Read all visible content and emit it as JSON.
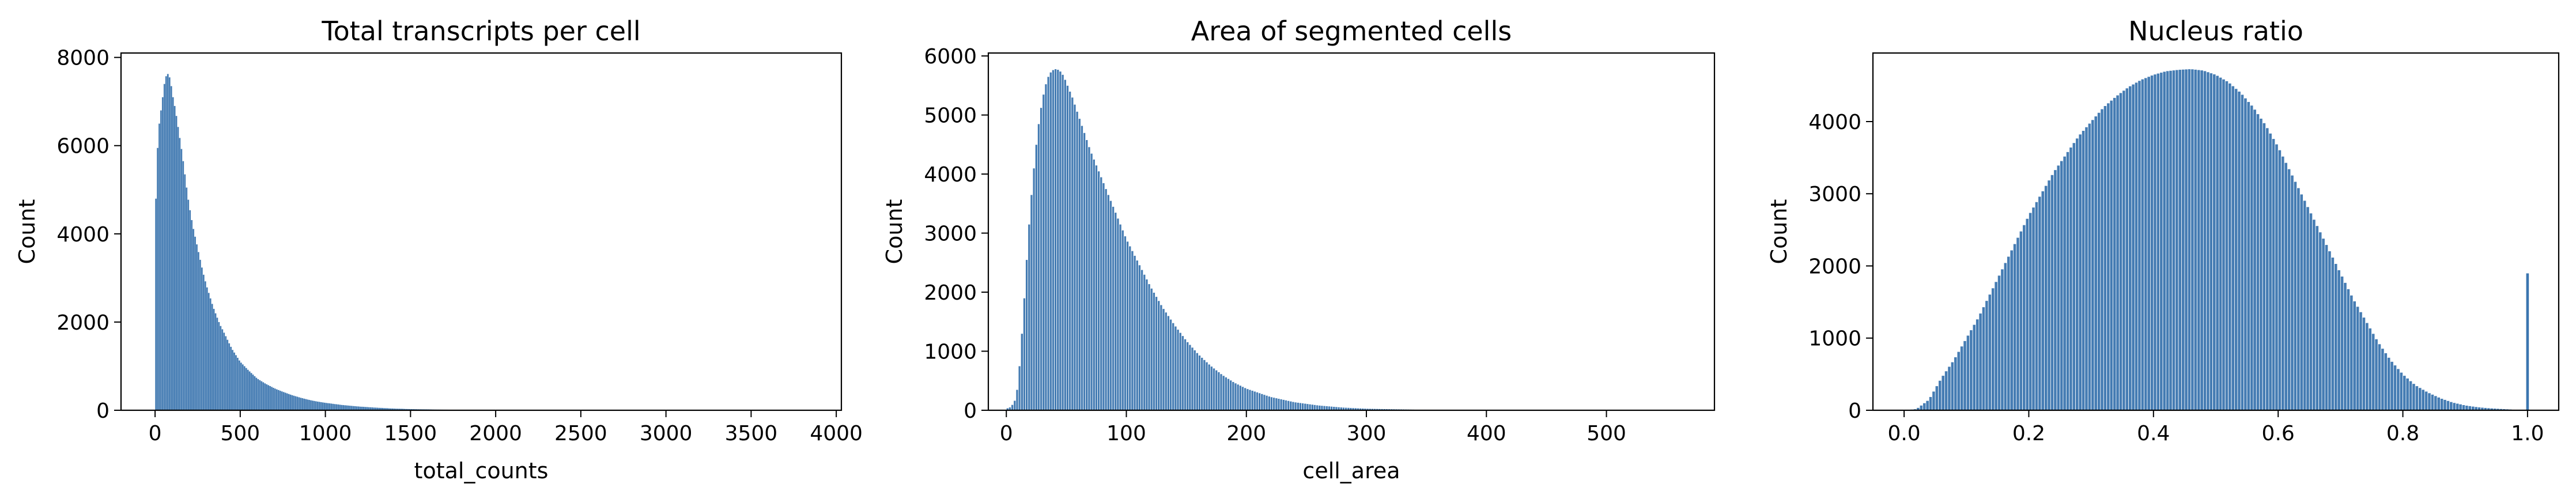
{
  "chart_data": [
    {
      "type": "histogram",
      "title": "Total transcripts per cell",
      "xlabel": "total_counts",
      "ylabel": "Count",
      "xlim": [
        -200,
        4030
      ],
      "ylim": [
        0,
        8100
      ],
      "xticks": [
        0,
        500,
        1000,
        1500,
        2000,
        2500,
        3000,
        3500,
        4000
      ],
      "yticks": [
        0,
        2000,
        4000,
        6000,
        8000
      ],
      "bin_width": 10,
      "color": "#3b75af",
      "profile": [
        [
          0,
          4000
        ],
        [
          10,
          5600
        ],
        [
          20,
          6300
        ],
        [
          30,
          6700
        ],
        [
          40,
          6900
        ],
        [
          50,
          7300
        ],
        [
          60,
          7500
        ],
        [
          70,
          7650
        ],
        [
          80,
          7600
        ],
        [
          90,
          7500
        ],
        [
          100,
          7200
        ],
        [
          110,
          7000
        ],
        [
          120,
          6800
        ],
        [
          130,
          6550
        ],
        [
          140,
          6300
        ],
        [
          150,
          6050
        ],
        [
          160,
          5800
        ],
        [
          170,
          5500
        ],
        [
          180,
          5200
        ],
        [
          190,
          4900
        ],
        [
          200,
          4650
        ],
        [
          220,
          4200
        ],
        [
          240,
          3850
        ],
        [
          260,
          3500
        ],
        [
          280,
          3150
        ],
        [
          300,
          2850
        ],
        [
          320,
          2600
        ],
        [
          340,
          2350
        ],
        [
          360,
          2150
        ],
        [
          380,
          1950
        ],
        [
          400,
          1800
        ],
        [
          450,
          1400
        ],
        [
          500,
          1100
        ],
        [
          550,
          900
        ],
        [
          600,
          720
        ],
        [
          650,
          600
        ],
        [
          700,
          500
        ],
        [
          750,
          420
        ],
        [
          800,
          350
        ],
        [
          850,
          290
        ],
        [
          900,
          240
        ],
        [
          950,
          200
        ],
        [
          1000,
          170
        ],
        [
          1100,
          120
        ],
        [
          1200,
          85
        ],
        [
          1300,
          60
        ],
        [
          1400,
          40
        ],
        [
          1500,
          28
        ],
        [
          1700,
          14
        ],
        [
          2000,
          6
        ],
        [
          2500,
          2
        ],
        [
          3000,
          1
        ],
        [
          3900,
          0
        ]
      ]
    },
    {
      "type": "histogram",
      "title": "Area of segmented cells",
      "xlabel": "cell_area",
      "ylabel": "Count",
      "xlim": [
        -15,
        590
      ],
      "ylim": [
        0,
        6050
      ],
      "xticks": [
        0,
        100,
        200,
        300,
        400,
        500
      ],
      "yticks": [
        0,
        1000,
        2000,
        3000,
        4000,
        5000,
        6000
      ],
      "bin_width": 2,
      "color": "#3b75af",
      "profile": [
        [
          0,
          30
        ],
        [
          4,
          60
        ],
        [
          8,
          200
        ],
        [
          10,
          500
        ],
        [
          12,
          1000
        ],
        [
          14,
          1600
        ],
        [
          16,
          2200
        ],
        [
          18,
          2900
        ],
        [
          20,
          3400
        ],
        [
          22,
          3900
        ],
        [
          24,
          4300
        ],
        [
          26,
          4700
        ],
        [
          28,
          5000
        ],
        [
          30,
          5250
        ],
        [
          32,
          5450
        ],
        [
          34,
          5600
        ],
        [
          36,
          5700
        ],
        [
          38,
          5750
        ],
        [
          40,
          5780
        ],
        [
          42,
          5780
        ],
        [
          44,
          5760
        ],
        [
          46,
          5720
        ],
        [
          48,
          5650
        ],
        [
          50,
          5550
        ],
        [
          55,
          5300
        ],
        [
          60,
          5000
        ],
        [
          65,
          4700
        ],
        [
          70,
          4400
        ],
        [
          75,
          4150
        ],
        [
          80,
          3900
        ],
        [
          85,
          3650
        ],
        [
          90,
          3400
        ],
        [
          95,
          3150
        ],
        [
          100,
          2900
        ],
        [
          110,
          2500
        ],
        [
          120,
          2100
        ],
        [
          130,
          1750
        ],
        [
          140,
          1450
        ],
        [
          150,
          1180
        ],
        [
          160,
          950
        ],
        [
          170,
          760
        ],
        [
          180,
          600
        ],
        [
          190,
          470
        ],
        [
          200,
          370
        ],
        [
          220,
          230
        ],
        [
          240,
          140
        ],
        [
          260,
          85
        ],
        [
          280,
          50
        ],
        [
          300,
          30
        ],
        [
          350,
          10
        ],
        [
          400,
          4
        ],
        [
          450,
          2
        ],
        [
          500,
          1
        ],
        [
          560,
          0
        ]
      ]
    },
    {
      "type": "histogram",
      "title": "Nucleus ratio",
      "xlabel": "",
      "ylabel": "Count",
      "xlim": [
        -0.05,
        1.05
      ],
      "ylim": [
        0,
        4950
      ],
      "xticks": [
        0.0,
        0.2,
        0.4,
        0.6,
        0.8,
        1.0
      ],
      "xtick_labels": [
        "0.0",
        "0.2",
        "0.4",
        "0.6",
        "0.8",
        "1.0"
      ],
      "yticks": [
        0,
        1000,
        2000,
        3000,
        4000
      ],
      "bin_width": 0.005,
      "color": "#3b75af",
      "profile": [
        [
          0,
          0
        ],
        [
          0.02,
          20
        ],
        [
          0.04,
          150
        ],
        [
          0.05,
          300
        ],
        [
          0.06,
          450
        ],
        [
          0.08,
          700
        ],
        [
          0.1,
          1000
        ],
        [
          0.12,
          1300
        ],
        [
          0.14,
          1650
        ],
        [
          0.16,
          2000
        ],
        [
          0.18,
          2350
        ],
        [
          0.2,
          2700
        ],
        [
          0.22,
          3000
        ],
        [
          0.24,
          3300
        ],
        [
          0.26,
          3550
        ],
        [
          0.28,
          3800
        ],
        [
          0.3,
          4000
        ],
        [
          0.32,
          4200
        ],
        [
          0.34,
          4350
        ],
        [
          0.36,
          4480
        ],
        [
          0.38,
          4580
        ],
        [
          0.4,
          4650
        ],
        [
          0.42,
          4700
        ],
        [
          0.44,
          4720
        ],
        [
          0.46,
          4730
        ],
        [
          0.48,
          4710
        ],
        [
          0.5,
          4650
        ],
        [
          0.52,
          4550
        ],
        [
          0.54,
          4400
        ],
        [
          0.56,
          4200
        ],
        [
          0.58,
          3950
        ],
        [
          0.6,
          3650
        ],
        [
          0.62,
          3300
        ],
        [
          0.64,
          2950
        ],
        [
          0.66,
          2600
        ],
        [
          0.68,
          2250
        ],
        [
          0.7,
          1900
        ],
        [
          0.72,
          1550
        ],
        [
          0.74,
          1250
        ],
        [
          0.76,
          950
        ],
        [
          0.78,
          700
        ],
        [
          0.8,
          500
        ],
        [
          0.82,
          350
        ],
        [
          0.84,
          250
        ],
        [
          0.86,
          170
        ],
        [
          0.88,
          110
        ],
        [
          0.9,
          70
        ],
        [
          0.92,
          45
        ],
        [
          0.94,
          30
        ],
        [
          0.96,
          20
        ],
        [
          0.98,
          10
        ],
        [
          0.995,
          5
        ]
      ],
      "spike": [
        1.0,
        1900
      ]
    }
  ]
}
